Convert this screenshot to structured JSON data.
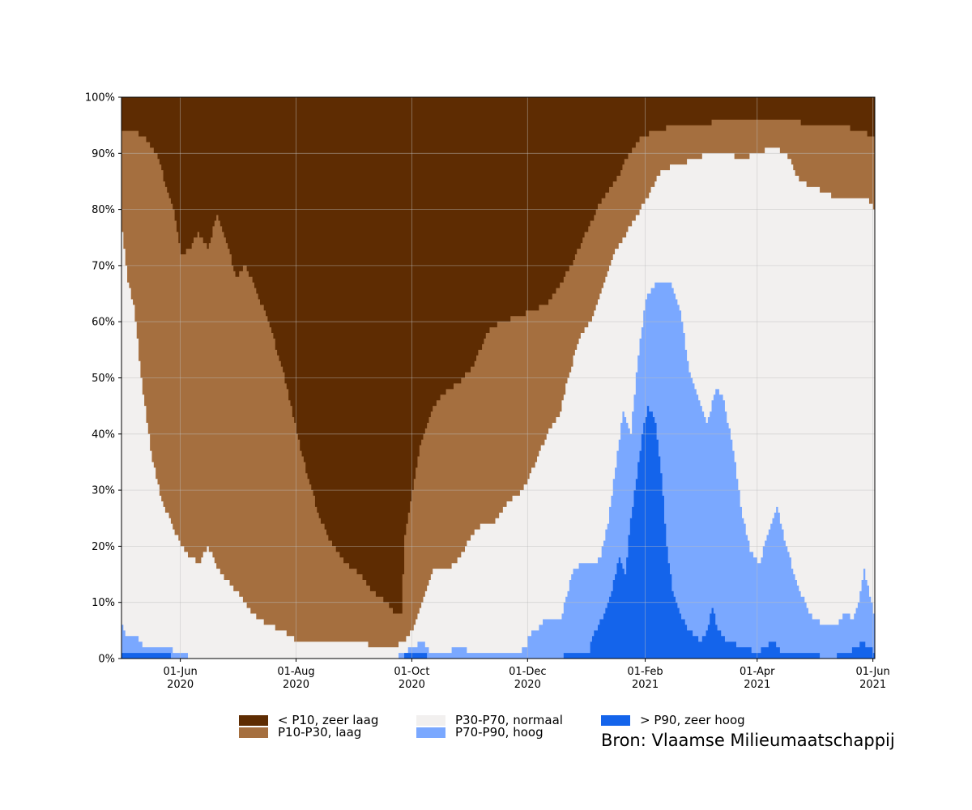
{
  "chart_data": {
    "type": "area",
    "stacked": true,
    "x_start": "2020-05-01",
    "x_end": "2021-06-02",
    "ylim": [
      0,
      100
    ],
    "y_ticks": [
      {
        "value": 0,
        "label": "0%"
      },
      {
        "value": 10,
        "label": "10%"
      },
      {
        "value": 20,
        "label": "20%"
      },
      {
        "value": 30,
        "label": "30%"
      },
      {
        "value": 40,
        "label": "40%"
      },
      {
        "value": 50,
        "label": "50%"
      },
      {
        "value": 60,
        "label": "60%"
      },
      {
        "value": 70,
        "label": "70%"
      },
      {
        "value": 80,
        "label": "80%"
      },
      {
        "value": 90,
        "label": "90%"
      },
      {
        "value": 100,
        "label": "100%"
      }
    ],
    "x_ticks": [
      {
        "date": "2020-06-01",
        "label": "01-Jun",
        "year": "2020"
      },
      {
        "date": "2020-08-01",
        "label": "01-Aug",
        "year": "2020"
      },
      {
        "date": "2020-10-01",
        "label": "01-Oct",
        "year": "2020"
      },
      {
        "date": "2020-12-01",
        "label": "01-Dec",
        "year": "2020"
      },
      {
        "date": "2021-02-01",
        "label": "01-Feb",
        "year": "2021"
      },
      {
        "date": "2021-04-01",
        "label": "01-Apr",
        "year": "2021"
      },
      {
        "date": "2021-06-01",
        "label": "01-Jun",
        "year": "2021"
      }
    ],
    "grid": true,
    "legend_position": "bottom",
    "series": [
      {
        "name": "> P90, zeer hoog",
        "color": "#1464EB",
        "points": [
          [
            "2020-05-01",
            1
          ],
          [
            "2020-05-26",
            1
          ],
          [
            "2020-05-27",
            0
          ],
          [
            "2020-09-26",
            0
          ],
          [
            "2020-09-27",
            1
          ],
          [
            "2020-10-08",
            1
          ],
          [
            "2020-10-09",
            0
          ],
          [
            "2020-12-19",
            0
          ],
          [
            "2020-12-20",
            1
          ],
          [
            "2021-01-02",
            1
          ],
          [
            "2021-01-03",
            3
          ],
          [
            "2021-01-07",
            6
          ],
          [
            "2021-01-10",
            8
          ],
          [
            "2021-01-14",
            12
          ],
          [
            "2021-01-18",
            18
          ],
          [
            "2021-01-21",
            15
          ],
          [
            "2021-01-24",
            25
          ],
          [
            "2021-01-27",
            32
          ],
          [
            "2021-01-30",
            40
          ],
          [
            "2021-02-02",
            45
          ],
          [
            "2021-02-06",
            42
          ],
          [
            "2021-02-09",
            33
          ],
          [
            "2021-02-12",
            20
          ],
          [
            "2021-02-15",
            12
          ],
          [
            "2021-02-19",
            8
          ],
          [
            "2021-02-23",
            5
          ],
          [
            "2021-02-27",
            4
          ],
          [
            "2021-03-02",
            3
          ],
          [
            "2021-03-05",
            5
          ],
          [
            "2021-03-08",
            9
          ],
          [
            "2021-03-11",
            5
          ],
          [
            "2021-03-16",
            3
          ],
          [
            "2021-03-24",
            2
          ],
          [
            "2021-04-01",
            1
          ],
          [
            "2021-04-05",
            2
          ],
          [
            "2021-04-09",
            3
          ],
          [
            "2021-04-14",
            1
          ],
          [
            "2021-04-28",
            1
          ],
          [
            "2021-05-08",
            0
          ],
          [
            "2021-05-18",
            1
          ],
          [
            "2021-05-24",
            2
          ],
          [
            "2021-05-26",
            3
          ],
          [
            "2021-05-29",
            2
          ],
          [
            "2021-06-02",
            1
          ]
        ]
      },
      {
        "name": "P70-P90, hoog",
        "color": "#7AA8FF",
        "points": [
          [
            "2020-05-01",
            6
          ],
          [
            "2020-05-03",
            4
          ],
          [
            "2020-05-08",
            4
          ],
          [
            "2020-05-12",
            2
          ],
          [
            "2020-05-26",
            2
          ],
          [
            "2020-05-28",
            1
          ],
          [
            "2020-06-03",
            1
          ],
          [
            "2020-06-06",
            0
          ],
          [
            "2020-09-21",
            0
          ],
          [
            "2020-09-26",
            1
          ],
          [
            "2020-10-06",
            3
          ],
          [
            "2020-10-11",
            1
          ],
          [
            "2020-10-17",
            1
          ],
          [
            "2020-10-26",
            2
          ],
          [
            "2020-11-02",
            1
          ],
          [
            "2020-11-14",
            1
          ],
          [
            "2020-11-26",
            1
          ],
          [
            "2020-11-30",
            2
          ],
          [
            "2020-12-01",
            4
          ],
          [
            "2020-12-05",
            5
          ],
          [
            "2020-12-10",
            7
          ],
          [
            "2020-12-18",
            7
          ],
          [
            "2020-12-21",
            11
          ],
          [
            "2020-12-25",
            16
          ],
          [
            "2020-12-30",
            17
          ],
          [
            "2021-01-05",
            17
          ],
          [
            "2021-01-08",
            18
          ],
          [
            "2021-01-12",
            24
          ],
          [
            "2021-01-16",
            34
          ],
          [
            "2021-01-20",
            44
          ],
          [
            "2021-01-24",
            40
          ],
          [
            "2021-01-28",
            54
          ],
          [
            "2021-02-01",
            64
          ],
          [
            "2021-02-07",
            67
          ],
          [
            "2021-02-14",
            67
          ],
          [
            "2021-02-19",
            62
          ],
          [
            "2021-02-24",
            51
          ],
          [
            "2021-03-01",
            46
          ],
          [
            "2021-03-05",
            42
          ],
          [
            "2021-03-10",
            48
          ],
          [
            "2021-03-14",
            46
          ],
          [
            "2021-03-19",
            37
          ],
          [
            "2021-03-24",
            25
          ],
          [
            "2021-03-28",
            19
          ],
          [
            "2021-04-02",
            17
          ],
          [
            "2021-04-06",
            22
          ],
          [
            "2021-04-11",
            27
          ],
          [
            "2021-04-15",
            21
          ],
          [
            "2021-04-21",
            14
          ],
          [
            "2021-04-28",
            8
          ],
          [
            "2021-05-05",
            6
          ],
          [
            "2021-05-12",
            6
          ],
          [
            "2021-05-17",
            8
          ],
          [
            "2021-05-21",
            7
          ],
          [
            "2021-05-24",
            10
          ],
          [
            "2021-05-27",
            16
          ],
          [
            "2021-05-30",
            11
          ],
          [
            "2021-06-02",
            7
          ]
        ]
      },
      {
        "name": "P30-P70, normaal",
        "color": "#F2F0EF",
        "points": [
          [
            "2020-05-01",
            76
          ],
          [
            "2020-05-04",
            67
          ],
          [
            "2020-05-07",
            63
          ],
          [
            "2020-05-12",
            47
          ],
          [
            "2020-05-17",
            35
          ],
          [
            "2020-05-22",
            28
          ],
          [
            "2020-05-27",
            24
          ],
          [
            "2020-06-01",
            20
          ],
          [
            "2020-06-06",
            18
          ],
          [
            "2020-06-11",
            17
          ],
          [
            "2020-06-15",
            20
          ],
          [
            "2020-06-22",
            15
          ],
          [
            "2020-06-30",
            12
          ],
          [
            "2020-07-08",
            8
          ],
          [
            "2020-07-16",
            6
          ],
          [
            "2020-07-24",
            5
          ],
          [
            "2020-08-01",
            3
          ],
          [
            "2020-09-01",
            3
          ],
          [
            "2020-09-14",
            2
          ],
          [
            "2020-09-21",
            2
          ],
          [
            "2020-09-27",
            3
          ],
          [
            "2020-10-01",
            5
          ],
          [
            "2020-10-06",
            10
          ],
          [
            "2020-10-12",
            16
          ],
          [
            "2020-10-20",
            16
          ],
          [
            "2020-10-26",
            18
          ],
          [
            "2020-11-01",
            22
          ],
          [
            "2020-11-07",
            24
          ],
          [
            "2020-11-13",
            24
          ],
          [
            "2020-11-21",
            28
          ],
          [
            "2020-11-28",
            30
          ],
          [
            "2020-12-05",
            35
          ],
          [
            "2020-12-12",
            41
          ],
          [
            "2020-12-17",
            43
          ],
          [
            "2020-12-22",
            50
          ],
          [
            "2020-12-28",
            57
          ],
          [
            "2021-01-03",
            60
          ],
          [
            "2021-01-09",
            66
          ],
          [
            "2021-01-15",
            72
          ],
          [
            "2021-01-22",
            76
          ],
          [
            "2021-01-29",
            80
          ],
          [
            "2021-02-03",
            83
          ],
          [
            "2021-02-09",
            87
          ],
          [
            "2021-02-18",
            88
          ],
          [
            "2021-02-27",
            89
          ],
          [
            "2021-03-07",
            90
          ],
          [
            "2021-03-14",
            90
          ],
          [
            "2021-03-24",
            89
          ],
          [
            "2021-04-01",
            90
          ],
          [
            "2021-04-08",
            91
          ],
          [
            "2021-04-16",
            90
          ],
          [
            "2021-04-23",
            85
          ],
          [
            "2021-04-30",
            84
          ],
          [
            "2021-05-06",
            83
          ],
          [
            "2021-05-13",
            82
          ],
          [
            "2021-05-22",
            82
          ],
          [
            "2021-05-29",
            82
          ],
          [
            "2021-06-02",
            79
          ]
        ]
      },
      {
        "name": "P10-P30, laag",
        "color": "#A56F3F",
        "points": [
          [
            "2020-05-01",
            94
          ],
          [
            "2020-05-07",
            94
          ],
          [
            "2020-05-12",
            93
          ],
          [
            "2020-05-17",
            91
          ],
          [
            "2020-05-21",
            88
          ],
          [
            "2020-05-24",
            84
          ],
          [
            "2020-05-28",
            80
          ],
          [
            "2020-06-01",
            72
          ],
          [
            "2020-06-06",
            73
          ],
          [
            "2020-06-10",
            76
          ],
          [
            "2020-06-15",
            73
          ],
          [
            "2020-06-20",
            79
          ],
          [
            "2020-06-25",
            74
          ],
          [
            "2020-06-30",
            68
          ],
          [
            "2020-07-05",
            70
          ],
          [
            "2020-07-10",
            66
          ],
          [
            "2020-07-17",
            60
          ],
          [
            "2020-07-24",
            52
          ],
          [
            "2020-08-01",
            40
          ],
          [
            "2020-08-07",
            32
          ],
          [
            "2020-08-13",
            25
          ],
          [
            "2020-08-20",
            20
          ],
          [
            "2020-08-27",
            17
          ],
          [
            "2020-09-03",
            15
          ],
          [
            "2020-09-10",
            12
          ],
          [
            "2020-09-17",
            10
          ],
          [
            "2020-09-22",
            8
          ],
          [
            "2020-09-25",
            8
          ],
          [
            "2020-09-27",
            22
          ],
          [
            "2020-10-01",
            30
          ],
          [
            "2020-10-05",
            38
          ],
          [
            "2020-10-11",
            44
          ],
          [
            "2020-10-17",
            47
          ],
          [
            "2020-10-25",
            49
          ],
          [
            "2020-11-02",
            52
          ],
          [
            "2020-11-09",
            58
          ],
          [
            "2020-11-17",
            60
          ],
          [
            "2020-11-26",
            61
          ],
          [
            "2020-12-03",
            62
          ],
          [
            "2020-12-10",
            63
          ],
          [
            "2020-12-17",
            66
          ],
          [
            "2020-12-25",
            71
          ],
          [
            "2021-01-02",
            77
          ],
          [
            "2021-01-09",
            82
          ],
          [
            "2021-01-16",
            85
          ],
          [
            "2021-01-23",
            90
          ],
          [
            "2021-01-30",
            93
          ],
          [
            "2021-02-07",
            94
          ],
          [
            "2021-02-17",
            95
          ],
          [
            "2021-03-01",
            95
          ],
          [
            "2021-03-15",
            96
          ],
          [
            "2021-04-01",
            96
          ],
          [
            "2021-04-16",
            96
          ],
          [
            "2021-05-01",
            95
          ],
          [
            "2021-05-15",
            95
          ],
          [
            "2021-06-02",
            93
          ]
        ]
      },
      {
        "name": "< P10, zeer laag",
        "color": "#5E2C02",
        "points": [
          [
            "2020-05-01",
            100
          ],
          [
            "2021-06-02",
            100
          ]
        ]
      }
    ]
  },
  "legend": {
    "items": [
      {
        "label": "< P10, zeer laag",
        "color": "#5E2C02"
      },
      {
        "label": "P10-P30, laag",
        "color": "#A56F3F"
      },
      {
        "label": "P30-P70, normaal",
        "color": "#F2F0EF"
      },
      {
        "label": "P70-P90, hoog",
        "color": "#7AA8FF"
      },
      {
        "label": "> P90, zeer hoog",
        "color": "#1464EB"
      }
    ]
  },
  "source": "Bron: Vlaamse Milieumaatschappij"
}
